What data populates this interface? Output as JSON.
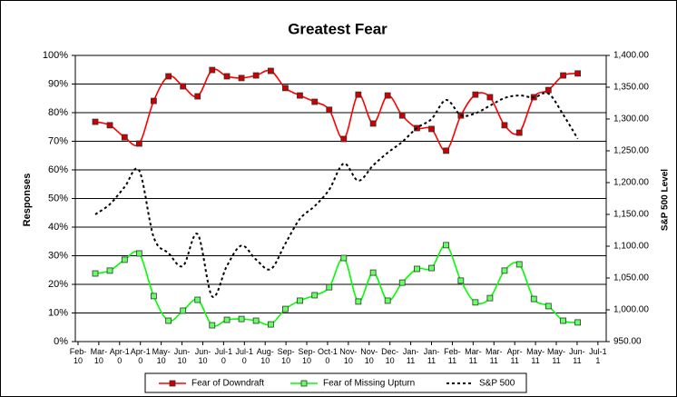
{
  "chart_data": {
    "type": "line",
    "title": "Greatest Fear",
    "y_label": "Responses",
    "y2_label": "S&P 500 Level",
    "x": [
      0.83,
      1.53,
      2.24,
      2.94,
      3.64,
      4.35,
      5.05,
      5.75,
      6.45,
      7.16,
      7.86,
      8.56,
      9.27,
      9.97,
      10.67,
      11.38,
      12.08,
      12.78,
      13.48,
      14.19,
      14.89,
      15.59,
      16.3,
      17.0,
      17.7,
      18.41,
      19.11,
      19.81,
      20.51,
      21.22,
      21.92,
      22.62,
      23.33,
      24.03
    ],
    "xlim": [
      -0.13,
      25.4
    ],
    "xticks": [
      {
        "value": 0,
        "label": "Feb-10"
      },
      {
        "value": 1,
        "label": "Mar-10"
      },
      {
        "value": 2,
        "label": "Apr-10"
      },
      {
        "value": 3,
        "label": "Apr-10"
      },
      {
        "value": 4,
        "label": "May-10"
      },
      {
        "value": 5,
        "label": "Jun-10"
      },
      {
        "value": 6,
        "label": "Jun-10"
      },
      {
        "value": 7,
        "label": "Jul-10"
      },
      {
        "value": 8,
        "label": "Jul-10"
      },
      {
        "value": 9,
        "label": "Aug-10"
      },
      {
        "value": 10,
        "label": "Sep-10"
      },
      {
        "value": 11,
        "label": "Sep-10"
      },
      {
        "value": 12,
        "label": "Oct-10"
      },
      {
        "value": 13,
        "label": "Nov-10"
      },
      {
        "value": 14,
        "label": "Nov-10"
      },
      {
        "value": 15,
        "label": "Dec-10"
      },
      {
        "value": 16,
        "label": "Jan-11"
      },
      {
        "value": 17,
        "label": "Jan-11"
      },
      {
        "value": 18,
        "label": "Feb-11"
      },
      {
        "value": 19,
        "label": "Mar-11"
      },
      {
        "value": 20,
        "label": "Mar-11"
      },
      {
        "value": 21,
        "label": "Apr-11"
      },
      {
        "value": 22,
        "label": "May-11"
      },
      {
        "value": 23,
        "label": "May-11"
      },
      {
        "value": 24,
        "label": "Jun-11"
      },
      {
        "value": 25,
        "label": "Jul-11"
      }
    ],
    "ylim": [
      0,
      100
    ],
    "yticks": [
      {
        "value": 0,
        "label": "0%"
      },
      {
        "value": 10,
        "label": "10%"
      },
      {
        "value": 20,
        "label": "20%"
      },
      {
        "value": 30,
        "label": "30%"
      },
      {
        "value": 40,
        "label": "40%"
      },
      {
        "value": 50,
        "label": "50%"
      },
      {
        "value": 60,
        "label": "60%"
      },
      {
        "value": 70,
        "label": "70%"
      },
      {
        "value": 80,
        "label": "80%"
      },
      {
        "value": 90,
        "label": "90%"
      },
      {
        "value": 100,
        "label": "100%"
      }
    ],
    "y2lim": [
      950,
      1400
    ],
    "y2ticks": [
      {
        "value": 950,
        "label": "950.00"
      },
      {
        "value": 1000,
        "label": "1,000.00"
      },
      {
        "value": 1050,
        "label": "1,050.00"
      },
      {
        "value": 1100,
        "label": "1,100.00"
      },
      {
        "value": 1150,
        "label": "1,150.00"
      },
      {
        "value": 1200,
        "label": "1,200.00"
      },
      {
        "value": 1250,
        "label": "1,250.00"
      },
      {
        "value": 1300,
        "label": "1,300.00"
      },
      {
        "value": 1350,
        "label": "1,350.00"
      },
      {
        "value": 1400,
        "label": "1,400.00"
      }
    ],
    "grid": true,
    "series": [
      {
        "name": "Fear of Downdraft",
        "color": "#ff0000",
        "marker_color": "#cc0000",
        "values": [
          76.8,
          75.6,
          71.4,
          69.2,
          84.1,
          92.7,
          89.2,
          85.7,
          94.9,
          92.7,
          92.1,
          93.0,
          94.6,
          88.6,
          86.0,
          83.8,
          81.0,
          70.8,
          86.3,
          76.2,
          86.0,
          79.0,
          74.6,
          74.3,
          66.7,
          79.0,
          86.3,
          85.4,
          75.6,
          73.0,
          85.4,
          87.9,
          93.0,
          93.7
        ]
      },
      {
        "name": "Fear of Missing Upturn",
        "color": "#00ff00",
        "marker_color": "#66ff66",
        "values": [
          23.8,
          24.8,
          28.6,
          30.8,
          15.9,
          7.3,
          10.8,
          14.6,
          5.7,
          7.6,
          7.9,
          7.3,
          6.0,
          11.4,
          14.3,
          16.2,
          19.0,
          29.2,
          14.0,
          24.1,
          14.3,
          20.6,
          25.4,
          25.7,
          33.7,
          21.3,
          13.7,
          15.2,
          24.8,
          27.0,
          14.9,
          12.4,
          7.3,
          6.7
        ]
      },
      {
        "name": "S&P 500",
        "color": "#000000",
        "axis": "y2",
        "dashed": true,
        "values": [
          1150,
          1166,
          1193,
          1219,
          1114,
          1089,
          1069,
          1119,
          1021,
          1069,
          1101,
          1079,
          1064,
          1104,
          1143,
          1163,
          1189,
          1230,
          1203,
          1227,
          1247,
          1264,
          1286,
          1300,
          1330,
          1306,
          1309,
          1321,
          1333,
          1337,
          1334,
          1340,
          1307,
          1269
        ]
      }
    ]
  }
}
